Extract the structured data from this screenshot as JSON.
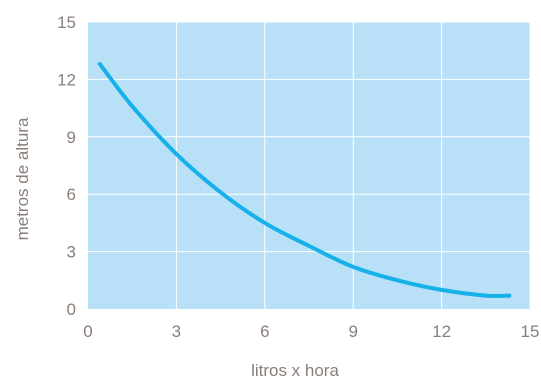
{
  "chart_data": {
    "type": "line",
    "title": "",
    "xlabel": "litros x hora",
    "ylabel": "metros de altura",
    "xlim": [
      0,
      15
    ],
    "ylim": [
      0,
      15
    ],
    "x_ticks": [
      "0",
      "3",
      "6",
      "9",
      "12",
      "15"
    ],
    "y_ticks": [
      "0",
      "3",
      "6",
      "9",
      "12",
      "15"
    ],
    "grid": true,
    "legend": "none",
    "colors": {
      "plot_background": "#b8e0f7",
      "grid": "#ffffff",
      "line": "#17b1ea",
      "text": "#8a7e78"
    },
    "series": [
      {
        "x": [
          0.4,
          1.5,
          3,
          4.5,
          6,
          7.5,
          9,
          10.5,
          12,
          13.5,
          14.3
        ],
        "y": [
          12.8,
          10.6,
          8.1,
          6.1,
          4.5,
          3.3,
          2.2,
          1.5,
          1.0,
          0.7,
          0.7
        ]
      }
    ]
  }
}
